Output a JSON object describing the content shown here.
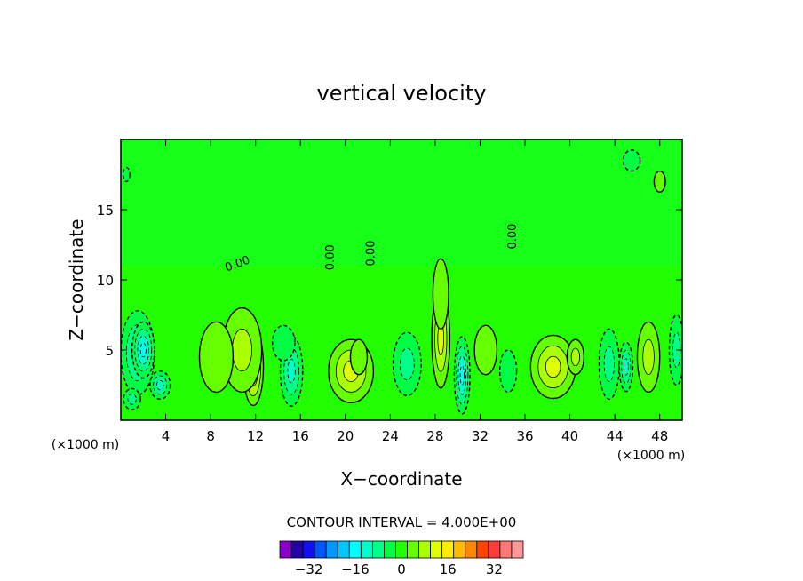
{
  "chart_data": {
    "type": "heatmap",
    "title": "vertical velocity",
    "xlabel": "X−coordinate",
    "ylabel": "Z−coordinate",
    "x_units_left": "(×1000 m)",
    "x_units_right": "(×1000 m)",
    "xlim": [
      0,
      50
    ],
    "ylim": [
      0,
      20
    ],
    "x_ticks": [
      4,
      8,
      12,
      16,
      20,
      24,
      28,
      32,
      36,
      40,
      44,
      48
    ],
    "y_ticks": [
      5,
      10,
      15
    ],
    "x_tick_labels": [
      "4",
      "8",
      "12",
      "16",
      "20",
      "24",
      "28",
      "32",
      "36",
      "40",
      "44",
      "48"
    ],
    "y_tick_labels": [
      "5",
      "10",
      "15"
    ],
    "contour_interval_text": "CONTOUR INTERVAL = 4.000E+00",
    "contour_labels": [
      {
        "text": "0.00",
        "x": 10.5,
        "z": 10.9,
        "rotate": -20
      },
      {
        "text": "0.00",
        "x": 19.0,
        "z": 11.6,
        "rotate": -90
      },
      {
        "text": "0.00",
        "x": 22.6,
        "z": 11.9,
        "rotate": -90
      },
      {
        "text": "0.00",
        "x": 35.2,
        "z": 13.1,
        "rotate": -90
      }
    ],
    "features": [
      {
        "x": 1.5,
        "z": 4.8,
        "w": 3.0,
        "h": 6.0,
        "v": -12
      },
      {
        "x": 2.0,
        "z": 5.0,
        "w": 2.0,
        "h": 4.0,
        "v": -16
      },
      {
        "x": 3.5,
        "z": 2.5,
        "w": 1.8,
        "h": 2.0,
        "v": -10
      },
      {
        "x": 1.0,
        "z": 1.5,
        "w": 1.5,
        "h": 1.5,
        "v": -5
      },
      {
        "x": 11.8,
        "z": 3.8,
        "w": 1.8,
        "h": 5.5,
        "v": 14
      },
      {
        "x": 10.8,
        "z": 5.0,
        "w": 3.5,
        "h": 6.0,
        "v": 6
      },
      {
        "x": 8.5,
        "z": 4.5,
        "w": 3.0,
        "h": 5.0,
        "v": 4
      },
      {
        "x": 15.2,
        "z": 3.5,
        "w": 2.0,
        "h": 5.0,
        "v": -9
      },
      {
        "x": 14.5,
        "z": 5.5,
        "w": 2.0,
        "h": 2.5,
        "v": -4
      },
      {
        "x": 20.5,
        "z": 3.5,
        "w": 4.0,
        "h": 4.5,
        "v": 10
      },
      {
        "x": 21.2,
        "z": 4.5,
        "w": 1.5,
        "h": 2.5,
        "v": 4
      },
      {
        "x": 25.5,
        "z": 4.0,
        "w": 2.5,
        "h": 4.5,
        "v": -5
      },
      {
        "x": 28.5,
        "z": 5.8,
        "w": 1.6,
        "h": 7.0,
        "v": 11
      },
      {
        "x": 28.5,
        "z": 9.0,
        "w": 1.4,
        "h": 5.0,
        "v": 4
      },
      {
        "x": 30.4,
        "z": 3.2,
        "w": 1.4,
        "h": 5.5,
        "v": -14
      },
      {
        "x": 32.5,
        "z": 5.0,
        "w": 2.0,
        "h": 3.5,
        "v": 4
      },
      {
        "x": 34.5,
        "z": 3.5,
        "w": 1.5,
        "h": 3.0,
        "v": -4
      },
      {
        "x": 38.5,
        "z": 3.8,
        "w": 4.0,
        "h": 4.5,
        "v": 10
      },
      {
        "x": 40.5,
        "z": 4.5,
        "w": 1.5,
        "h": 2.5,
        "v": 5
      },
      {
        "x": 43.5,
        "z": 4.0,
        "w": 1.8,
        "h": 5.0,
        "v": -8
      },
      {
        "x": 45.0,
        "z": 3.8,
        "w": 1.2,
        "h": 3.5,
        "v": -12
      },
      {
        "x": 47.0,
        "z": 4.5,
        "w": 2.0,
        "h": 5.0,
        "v": 6
      },
      {
        "x": 49.5,
        "z": 5.0,
        "w": 1.3,
        "h": 5.0,
        "v": -6
      },
      {
        "x": 0.5,
        "z": 17.5,
        "w": 0.6,
        "h": 1.0,
        "v": -4
      },
      {
        "x": 45.5,
        "z": 18.5,
        "w": 1.5,
        "h": 1.5,
        "v": -4
      },
      {
        "x": 48.0,
        "z": 17.0,
        "w": 1.0,
        "h": 1.5,
        "v": 3
      }
    ],
    "colorbar": {
      "colors": [
        "#8800c8",
        "#2200aa",
        "#1010ee",
        "#0055ff",
        "#0099ff",
        "#00c8ff",
        "#00ffff",
        "#00ffcc",
        "#00ff88",
        "#00ff44",
        "#22ff00",
        "#66ff00",
        "#aaff00",
        "#ddff00",
        "#ffee00",
        "#ffbb00",
        "#ff8800",
        "#ff4400",
        "#ff3b3b",
        "#ff7777",
        "#ff9999"
      ],
      "tick_labels": [
        "−32",
        "−16",
        "0",
        "16",
        "32"
      ],
      "tick_values": [
        -32,
        -16,
        0,
        16,
        32
      ],
      "vmin": -42,
      "vmax": 42
    }
  }
}
